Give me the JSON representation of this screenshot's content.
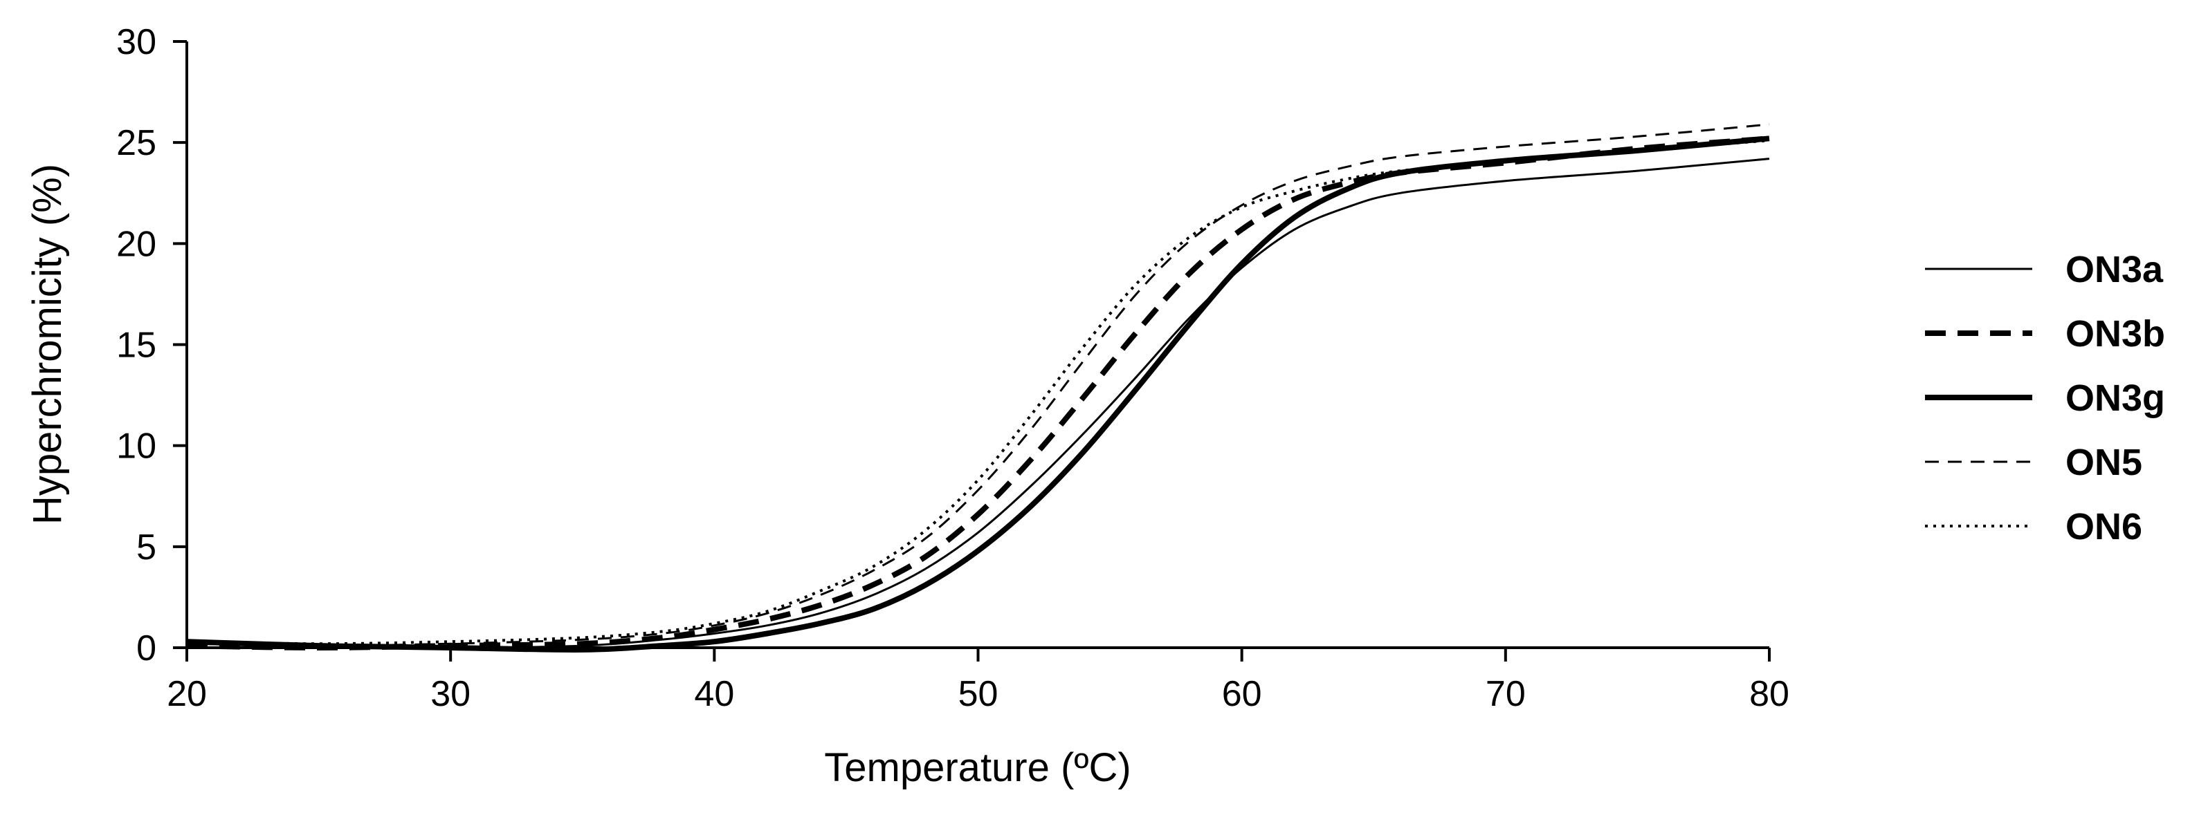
{
  "chart_data": {
    "type": "line",
    "title": "",
    "xlabel": "Temperature (ºC)",
    "ylabel": "Hyperchromicity (%)",
    "xlim": [
      20,
      80
    ],
    "ylim": [
      0,
      30
    ],
    "xticks": [
      20,
      30,
      40,
      50,
      60,
      70,
      80
    ],
    "yticks": [
      0,
      5,
      10,
      15,
      20,
      25,
      30
    ],
    "grid": false,
    "legend_position": "right",
    "x": [
      20,
      25,
      30,
      35,
      38,
      40,
      42,
      44,
      46,
      48,
      50,
      52,
      54,
      56,
      58,
      60,
      62,
      64,
      66,
      70,
      75,
      80
    ],
    "series": [
      {
        "name": "ON3a",
        "style": "thin-solid",
        "values": [
          0.2,
          0.1,
          0.0,
          0.1,
          0.4,
          0.7,
          1.1,
          1.7,
          2.6,
          3.9,
          5.7,
          8.0,
          10.6,
          13.4,
          16.3,
          18.8,
          20.7,
          21.8,
          22.5,
          23.1,
          23.6,
          24.2
        ]
      },
      {
        "name": "ON3b",
        "style": "bold-dashed",
        "values": [
          0.1,
          0.0,
          0.1,
          0.2,
          0.5,
          0.9,
          1.4,
          2.1,
          3.1,
          4.5,
          6.6,
          9.3,
          12.4,
          15.6,
          18.5,
          20.7,
          22.2,
          23.0,
          23.5,
          24.0,
          24.7,
          25.2
        ]
      },
      {
        "name": "ON3g",
        "style": "bold-solid",
        "values": [
          0.3,
          0.1,
          0.0,
          -0.1,
          0.1,
          0.3,
          0.7,
          1.2,
          1.9,
          3.1,
          4.8,
          7.0,
          9.7,
          12.8,
          16.0,
          19.0,
          21.3,
          22.7,
          23.5,
          24.1,
          24.6,
          25.2
        ]
      },
      {
        "name": "ON5",
        "style": "thin-dashed",
        "values": [
          0.2,
          0.1,
          0.2,
          0.4,
          0.7,
          1.1,
          1.7,
          2.6,
          3.8,
          5.4,
          7.8,
          10.8,
          14.2,
          17.5,
          20.1,
          21.9,
          23.1,
          23.8,
          24.3,
          24.8,
          25.3,
          25.9
        ]
      },
      {
        "name": "ON6",
        "style": "dotted",
        "values": [
          0.3,
          0.2,
          0.3,
          0.5,
          0.8,
          1.2,
          1.8,
          2.8,
          4.0,
          5.8,
          8.3,
          11.5,
          14.9,
          18.0,
          20.3,
          21.8,
          22.6,
          23.2,
          23.6,
          24.1,
          24.6,
          25.1
        ]
      }
    ]
  }
}
